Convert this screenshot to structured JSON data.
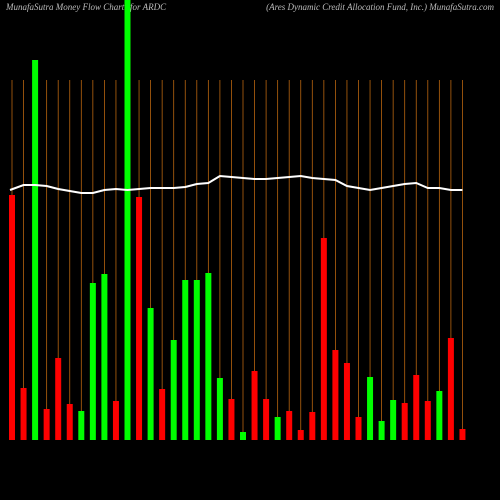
{
  "chart_data": {
    "type": "bar",
    "title": "MunafaSutra  Money Flow  Charts for ARDC",
    "subtitle": "(Ares Dynamic Credit Allocation  Fund,  Inc.) MunafaSutra.com",
    "values": [
      245,
      52,
      380,
      31,
      82,
      36,
      29,
      157,
      166,
      39,
      440,
      243,
      132,
      51,
      100,
      160,
      160,
      167,
      62,
      41,
      8,
      69,
      41,
      23,
      29,
      10,
      28,
      202,
      90,
      77,
      23,
      63,
      19,
      40,
      37,
      65,
      39,
      49,
      102,
      11
    ],
    "colors": [
      "#ff0000",
      "#ff0000",
      "#00ff00",
      "#ff0000",
      "#ff0000",
      "#ff0000",
      "#00ff00",
      "#00ff00",
      "#00ff00",
      "#ff0000",
      "#00ff00",
      "#ff0000",
      "#00ff00",
      "#ff0000",
      "#00ff00",
      "#00ff00",
      "#00ff00",
      "#00ff00",
      "#00ff00",
      "#ff0000",
      "#00ff00",
      "#ff0000",
      "#ff0000",
      "#00ff00",
      "#ff0000",
      "#ff0000",
      "#ff0000",
      "#ff0000",
      "#ff0000",
      "#ff0000",
      "#ff0000",
      "#00ff00",
      "#00ff00",
      "#00ff00",
      "#ff0000",
      "#ff0000",
      "#ff0000",
      "#00ff00",
      "#ff0000",
      "#ff0000"
    ],
    "price": [
      250,
      255,
      255,
      254,
      251,
      249,
      247,
      247,
      250,
      251,
      250,
      251,
      252,
      252,
      252,
      253,
      256,
      257,
      264,
      263,
      262,
      261,
      261,
      262,
      263,
      264,
      262,
      261,
      260,
      254,
      252,
      250,
      252,
      254,
      256,
      257,
      252,
      252,
      250,
      250
    ],
    "ylim": [
      0,
      440
    ],
    "y2lim": [
      0,
      440
    ]
  }
}
